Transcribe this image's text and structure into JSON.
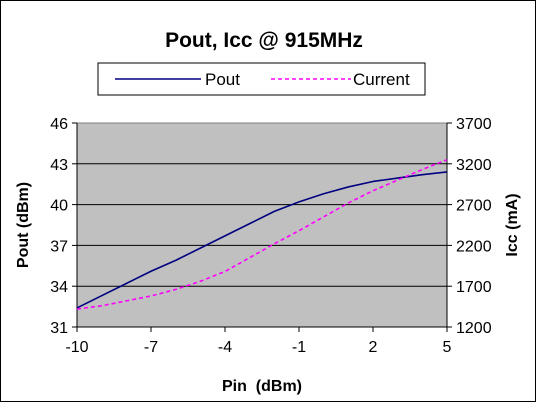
{
  "chart_data": {
    "type": "line",
    "title": "Pout, Icc @ 915MHz",
    "xlabel": "Pin  (dBm)",
    "ylabel_left": "Pout (dBm)",
    "ylabel_right": "Icc (mA)",
    "x_ticks": [
      "-10",
      "-7",
      "-4",
      "-1",
      "2",
      "5"
    ],
    "y_left_ticks": [
      "31",
      "34",
      "37",
      "40",
      "43",
      "46"
    ],
    "y_right_ticks": [
      "1200",
      "1700",
      "2200",
      "2700",
      "3200",
      "3700"
    ],
    "xlim": [
      -10,
      5
    ],
    "ylim_left": [
      31,
      46
    ],
    "ylim_right": [
      1200,
      3700
    ],
    "grid": "horizontal",
    "legend_position": "top",
    "plot_background": "#c0c0c0",
    "series": [
      {
        "name": "Pout",
        "axis": "left",
        "style": "solid",
        "color": "#000080",
        "x": [
          -10,
          -9,
          -8,
          -7,
          -6,
          -5,
          -4,
          -3,
          -2,
          -1,
          0,
          1,
          2,
          3,
          4,
          5
        ],
        "y": [
          32.4,
          33.3,
          34.2,
          35.1,
          35.9,
          36.8,
          37.7,
          38.6,
          39.5,
          40.2,
          40.8,
          41.3,
          41.7,
          41.95,
          42.2,
          42.4
        ]
      },
      {
        "name": "Current",
        "axis": "right",
        "style": "dashed",
        "color": "#ff00ff",
        "x": [
          -10,
          -9,
          -8,
          -7,
          -6,
          -5,
          -4,
          -3,
          -2,
          -1,
          0,
          1,
          2,
          3,
          4,
          5
        ],
        "y": [
          1420,
          1460,
          1520,
          1580,
          1660,
          1760,
          1880,
          2050,
          2220,
          2380,
          2550,
          2720,
          2870,
          3000,
          3130,
          3250
        ]
      }
    ]
  }
}
